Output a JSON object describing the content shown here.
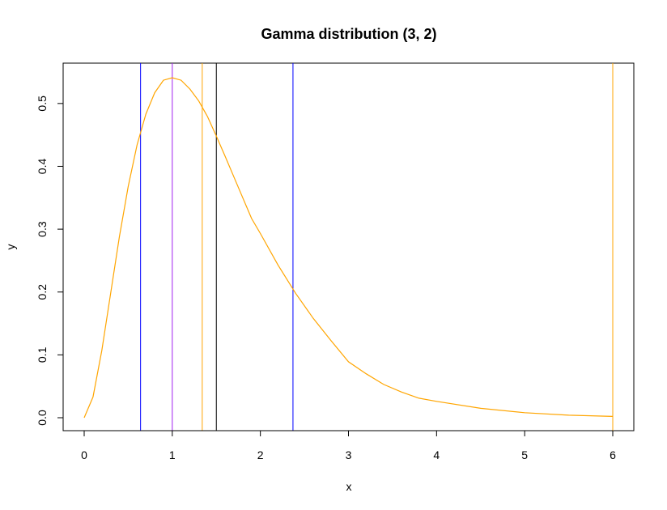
{
  "chart_data": {
    "type": "line",
    "title": "Gamma distribution (3, 2)",
    "xlabel": "x",
    "ylabel": "y",
    "xlim": [
      0,
      6
    ],
    "ylim": [
      0,
      0.541
    ],
    "grid": false,
    "x_ticks": [
      "0",
      "1",
      "2",
      "3",
      "4",
      "5",
      "6"
    ],
    "y_ticks": [
      "0.0",
      "0.1",
      "0.2",
      "0.3",
      "0.4",
      "0.5"
    ],
    "series": [
      {
        "color": "#FFA500",
        "x": [
          0,
          0.1,
          0.2,
          0.3,
          0.4,
          0.5,
          0.6,
          0.7,
          0.8,
          0.9,
          1.0,
          1.1,
          1.2,
          1.3,
          1.4,
          1.5,
          1.6,
          1.7,
          1.8,
          1.9,
          2.0,
          2.2,
          2.4,
          2.6,
          2.8,
          3.0,
          3.2,
          3.4,
          3.6,
          3.8,
          4.0,
          4.5,
          5.0,
          5.5,
          6.0
        ],
        "y": [
          0,
          0.033,
          0.107,
          0.198,
          0.288,
          0.368,
          0.434,
          0.483,
          0.517,
          0.537,
          0.541,
          0.537,
          0.523,
          0.504,
          0.479,
          0.448,
          0.416,
          0.383,
          0.35,
          0.317,
          0.293,
          0.243,
          0.198,
          0.158,
          0.123,
          0.089,
          0.07,
          0.053,
          0.041,
          0.031,
          0.026,
          0.015,
          0.008,
          0.004,
          0.002
        ]
      }
    ],
    "vlines": [
      {
        "x": 0.64,
        "color": "#0000FF"
      },
      {
        "x": 1.0,
        "color": "#A020F0"
      },
      {
        "x": 1.34,
        "color": "#FFA500"
      },
      {
        "x": 1.5,
        "color": "#000000"
      },
      {
        "x": 2.37,
        "color": "#0000FF"
      },
      {
        "x": 6.0,
        "color": "#FFA500"
      }
    ]
  }
}
